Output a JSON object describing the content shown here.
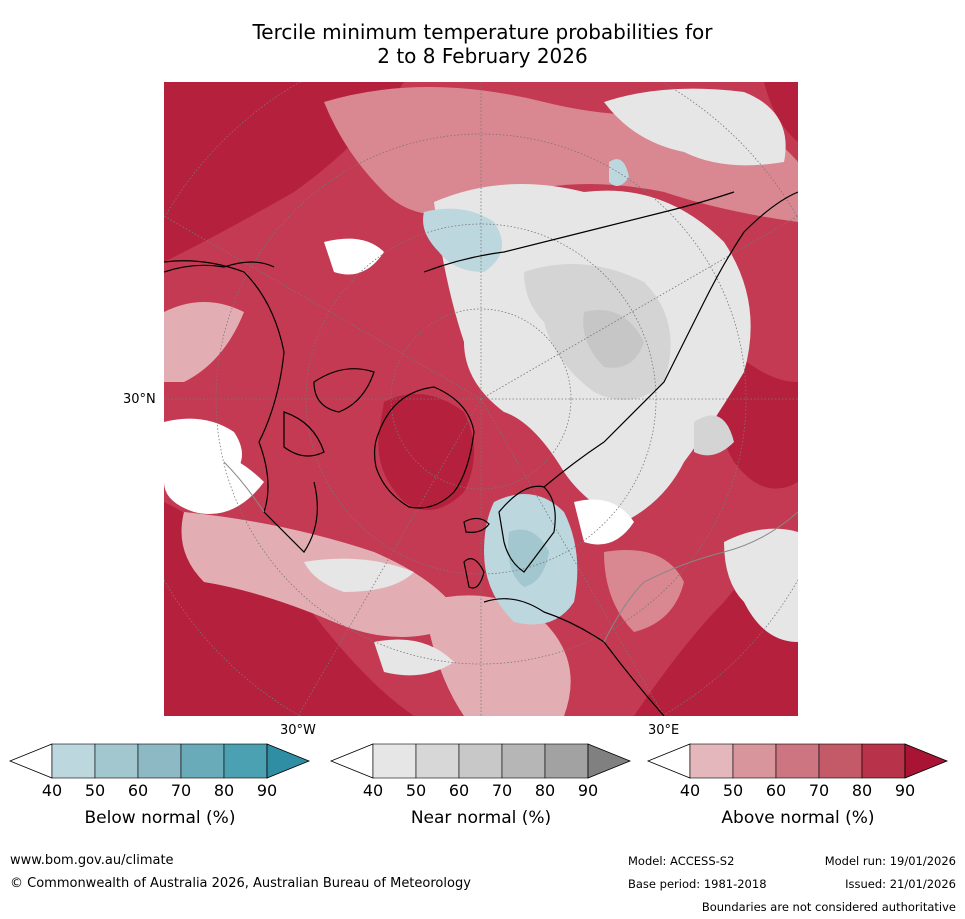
{
  "title": {
    "line1": "Tercile minimum temperature probabilities for",
    "line2": "2 to 8 February 2026"
  },
  "map": {
    "projection": "north-polar-stereographic",
    "lat_label": "30°N",
    "lon_labels": {
      "west": "30°W",
      "east": "30°E"
    },
    "colors": {
      "above_90": "#b5213d",
      "above_80": "#c43a52",
      "above_70": "#cf6474",
      "above_60": "#d98790",
      "above_50": "#e3aeb3",
      "near_40": "#e6e6e6",
      "near_50": "#d4d4d4",
      "near_60": "#c6c6c6",
      "below_40": "#bcd7de",
      "below_50": "#a3c7cf",
      "white": "#ffffff",
      "coast": "#000000",
      "border": "#888888"
    }
  },
  "colorbars": [
    {
      "key": "below",
      "title": "Below normal (%)",
      "ticks": [
        "40",
        "50",
        "60",
        "70",
        "80",
        "90"
      ],
      "colors": [
        "#ffffff",
        "#bcd7de",
        "#a3c7cf",
        "#8db9c4",
        "#6aabb9",
        "#4ba1b2",
        "#2f8ea3"
      ]
    },
    {
      "key": "near",
      "title": "Near normal (%)",
      "ticks": [
        "40",
        "50",
        "60",
        "70",
        "80",
        "90"
      ],
      "colors": [
        "#ffffff",
        "#e6e6e6",
        "#d7d7d7",
        "#c8c8c8",
        "#b6b6b6",
        "#a2a2a2",
        "#808080"
      ]
    },
    {
      "key": "above",
      "title": "Above normal (%)",
      "ticks": [
        "40",
        "50",
        "60",
        "70",
        "80",
        "90"
      ],
      "colors": [
        "#ffffff",
        "#e3b7bb",
        "#d8959c",
        "#cd7580",
        "#c45a67",
        "#b83249",
        "#aa1434"
      ]
    }
  ],
  "footer": {
    "url": "www.bom.gov.au/climate",
    "copyright": "© Commonwealth of Australia 2026, Australian Bureau of Meteorology",
    "model": "Model: ACCESS-S2",
    "model_run": "Model run: 19/01/2026",
    "base_period": "Base period: 1981-2018",
    "issued": "Issued: 21/01/2026",
    "disclaimer": "Boundaries are not considered authoritative"
  }
}
